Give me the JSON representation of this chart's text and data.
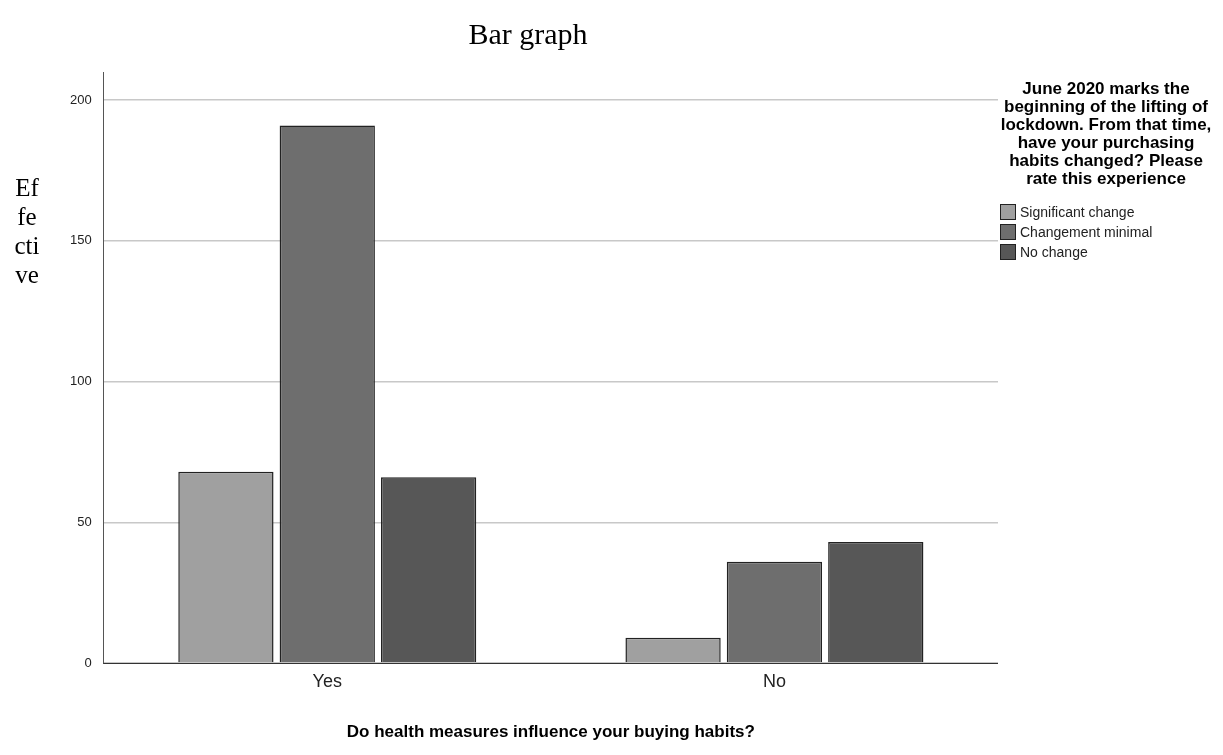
{
  "chart_data": {
    "type": "bar",
    "title": "Bar graph",
    "xlabel": "Do health measures influence your buying habits?",
    "ylabel": "Effective",
    "legend_title": "June 2020 marks the beginning of the lifting of lockdown. From that time, have your purchasing habits changed? Please rate this experience",
    "categories": [
      "Yes",
      "No"
    ],
    "series": [
      {
        "name": "Significant change",
        "color": "#a0a0a0",
        "values": [
          68,
          9
        ]
      },
      {
        "name": "Changement minimal",
        "color": "#6e6e6e",
        "values": [
          191,
          36
        ]
      },
      {
        "name": "No change",
        "color": "#575757",
        "values": [
          66,
          43
        ]
      }
    ],
    "ylim": [
      0,
      210
    ],
    "yticks": [
      0,
      50,
      100,
      150,
      200
    ],
    "grid": "y",
    "legend": "right"
  }
}
